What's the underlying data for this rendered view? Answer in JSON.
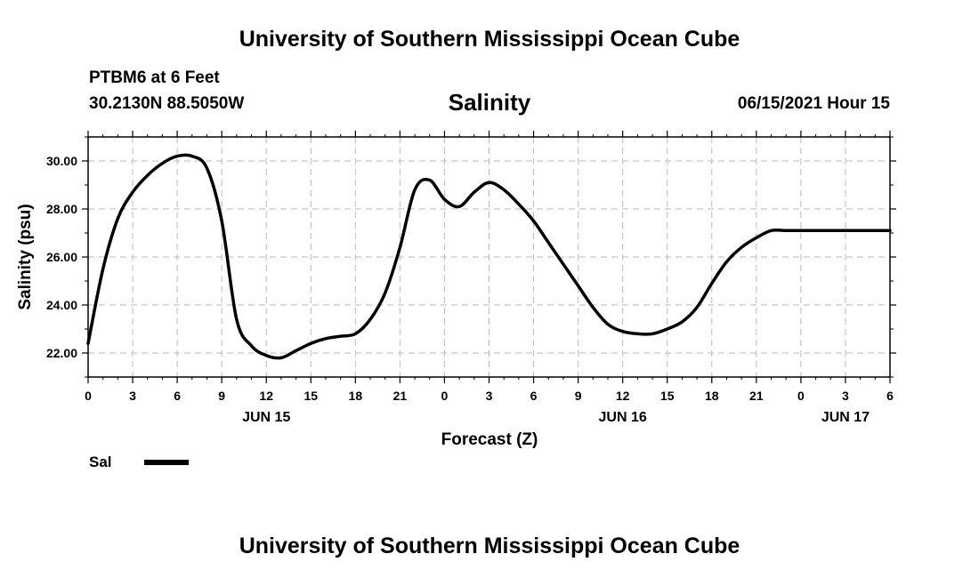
{
  "header": {
    "title": "University of Southern Mississippi Ocean Cube",
    "station": "PTBM6 at 6 Feet",
    "coords": "30.2130N  88.5050W",
    "datetime": "06/15/2021 Hour 15"
  },
  "footer": {
    "title": "University of Southern Mississippi Ocean Cube"
  },
  "legend": {
    "label": "Sal",
    "swatch_color": "#000000"
  },
  "chart_data": {
    "type": "line",
    "title": "Salinity",
    "xlabel": "Forecast (Z)",
    "ylabel": "Salinity (psu)",
    "xlim": [
      0,
      54
    ],
    "ylim": [
      21.0,
      31.0
    ],
    "grid": true,
    "x_tick_labels": [
      "0",
      "3",
      "6",
      "9",
      "12",
      "15",
      "18",
      "21",
      "0",
      "3",
      "6",
      "9",
      "12",
      "15",
      "18",
      "21",
      "0",
      "3",
      "6"
    ],
    "y_ticks": [
      22.0,
      24.0,
      26.0,
      28.0,
      30.0
    ],
    "y_tick_labels": [
      "22.00",
      "24.00",
      "26.00",
      "28.00",
      "30.00"
    ],
    "day_labels": [
      {
        "label": "JUN 15",
        "hour": 12
      },
      {
        "label": "JUN 16",
        "hour": 36
      },
      {
        "label": "JUN 17",
        "hour": 51
      }
    ],
    "series": [
      {
        "name": "Sal",
        "color": "#000000",
        "x": [
          0,
          1,
          2,
          3,
          4,
          5,
          6,
          7,
          8,
          9,
          10,
          11,
          12,
          13,
          14,
          15,
          16,
          17,
          18,
          19,
          20,
          21,
          22,
          23,
          24,
          25,
          26,
          27,
          28,
          29,
          30,
          31,
          32,
          33,
          34,
          35,
          36,
          37,
          38,
          39,
          40,
          41,
          42,
          43,
          44,
          45,
          46,
          47,
          48,
          49,
          50,
          51,
          52,
          53,
          54
        ],
        "y": [
          22.4,
          25.5,
          27.6,
          28.7,
          29.4,
          29.9,
          30.2,
          30.2,
          29.7,
          27.5,
          23.4,
          22.3,
          21.9,
          21.8,
          22.1,
          22.4,
          22.6,
          22.7,
          22.8,
          23.4,
          24.5,
          26.4,
          28.8,
          29.2,
          28.4,
          28.1,
          28.7,
          29.1,
          28.8,
          28.2,
          27.5,
          26.6,
          25.7,
          24.8,
          23.9,
          23.2,
          22.9,
          22.8,
          22.8,
          23.0,
          23.3,
          23.9,
          24.9,
          25.8,
          26.4,
          26.8,
          27.1,
          27.1,
          27.1,
          27.1,
          27.1,
          27.1,
          27.1,
          27.1,
          27.1
        ]
      }
    ]
  }
}
